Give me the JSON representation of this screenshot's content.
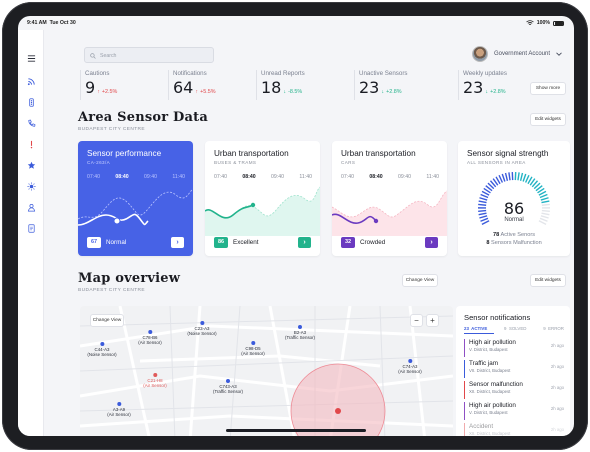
{
  "status_bar": {
    "time": "9:41 AM",
    "date": "Tue Oct 30",
    "battery": "100%"
  },
  "search": {
    "placeholder": "Search"
  },
  "account": {
    "label": "Government Account"
  },
  "stats": [
    {
      "label": "Cautions",
      "value": "9",
      "delta": "+2.5%",
      "trend": "up"
    },
    {
      "label": "Notifications",
      "value": "64",
      "delta": "+5.5%",
      "trend": "up"
    },
    {
      "label": "Unread Reports",
      "value": "18",
      "delta": "-8.5%",
      "trend": "down"
    },
    {
      "label": "Unactive Sensors",
      "value": "23",
      "delta": "+2.8%",
      "trend": "down"
    },
    {
      "label": "Weekly updates",
      "value": "23",
      "delta": "+2.8%",
      "trend": "down"
    }
  ],
  "show_more": "Show more",
  "area": {
    "title": "Area Sensor Data",
    "subtitle": "BUDAPEST CITY CENTRE",
    "edit": "Edit widgets"
  },
  "cards": [
    {
      "title": "Sensor performance",
      "subtitle": "CA-263/A",
      "times": [
        "07:40",
        "08:40",
        "09:40",
        "11:40"
      ],
      "value": "67",
      "status": "Normal"
    },
    {
      "title": "Urban transportation",
      "subtitle": "BUSES & TRAMS",
      "times": [
        "07:40",
        "08:40",
        "09:40",
        "11:40"
      ],
      "value": "86",
      "status": "Excellent"
    },
    {
      "title": "Urban transportation",
      "subtitle": "CARS",
      "times": [
        "07:40",
        "08:40",
        "09:40",
        "11:40"
      ],
      "value": "32",
      "status": "Crowded"
    }
  ],
  "signal": {
    "title": "Sensor signal strength",
    "subtitle": "ALL SENSORS IN AREA",
    "value": "86",
    "label": "Normal",
    "active_count": "78",
    "active_label": "Active Senors",
    "malf_count": "8",
    "malf_label": "Sensors Malfunction",
    "level": 0.86
  },
  "map_section": {
    "title": "Map overview",
    "subtitle": "BUDAPEST CITY CENTRE",
    "change_view": "Change View",
    "edit": "Edit widgets"
  },
  "map": {
    "change_view": "Change View",
    "zoom_out": "−",
    "zoom_in": "+",
    "pins": [
      {
        "id": "C78-B6",
        "type": "(Air Sensor)",
        "color": "#3b5bdb"
      },
      {
        "id": "C23-A3",
        "type": "(Noise Sensor)",
        "color": "#3b5bdb"
      },
      {
        "id": "B2-A3",
        "type": "(Traffic Sensor)",
        "color": "#3b5bdb"
      },
      {
        "id": "C44-A3",
        "type": "(Noise Sensor)",
        "color": "#3b5bdb"
      },
      {
        "id": "C98-D5",
        "type": "(Air Sensor)",
        "color": "#3b5bdb"
      },
      {
        "id": "C21-H8",
        "type": "(Air Sensor)",
        "color": "#e05a5a"
      },
      {
        "id": "C74-A3",
        "type": "(Air Sensor)",
        "color": "#3b5bdb"
      },
      {
        "id": "C743-A3",
        "type": "(Traffic Sensor)",
        "color": "#3b5bdb"
      },
      {
        "id": "A3-A9",
        "type": "(Air Sensor)",
        "color": "#3b5bdb"
      }
    ]
  },
  "notifications": {
    "title": "Sensor notifications",
    "tabs": [
      "ACTIVE",
      "SOLVED",
      "ERROR"
    ],
    "tab_counts": [
      "23",
      "9",
      "9"
    ],
    "items": [
      {
        "title": "High air pollution",
        "place": "V. District, Budapest",
        "time": "2h ago",
        "color": "#8e4fc4"
      },
      {
        "title": "Traffic jam",
        "place": "VII. District, Budapest",
        "time": "2h ago",
        "color": "#3b5bdb"
      },
      {
        "title": "Sensor malfunction",
        "place": "XII. District, Budapest",
        "time": "2h ago",
        "color": "#e1474a"
      },
      {
        "title": "High air pollution",
        "place": "V. District, Budapest",
        "time": "2h ago",
        "color": "#8e4fc4"
      },
      {
        "title": "Accident",
        "place": "XII. District, Budapest",
        "time": "2h ago",
        "color": "#e1474a"
      }
    ]
  }
}
